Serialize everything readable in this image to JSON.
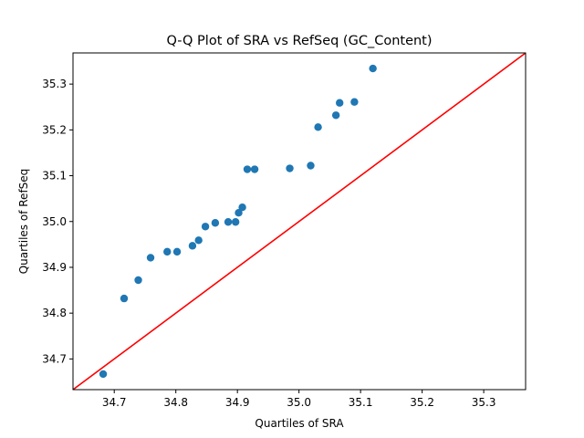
{
  "chart_data": {
    "type": "scatter",
    "title": "Q-Q Plot of SRA vs RefSeq (GC_Content)",
    "xlabel": "Quartiles of SRA",
    "ylabel": "Quartiles of RefSeq",
    "xlim": [
      34.633,
      35.368
    ],
    "ylim": [
      34.633,
      35.368
    ],
    "xticks": [
      "34.7",
      "34.8",
      "34.9",
      "35.0",
      "35.1",
      "35.2",
      "35.3"
    ],
    "yticks": [
      "34.7",
      "34.8",
      "34.9",
      "35.0",
      "35.1",
      "35.2",
      "35.3"
    ],
    "grid": false,
    "reference_line": {
      "from": [
        34.633,
        34.633
      ],
      "to": [
        35.368,
        35.368
      ],
      "color": "#ff0000"
    },
    "marker_color": "#1f77b4",
    "points": [
      {
        "x": 34.682,
        "y": 34.667
      },
      {
        "x": 34.716,
        "y": 34.832
      },
      {
        "x": 34.739,
        "y": 34.872
      },
      {
        "x": 34.759,
        "y": 34.921
      },
      {
        "x": 34.786,
        "y": 34.934
      },
      {
        "x": 34.802,
        "y": 34.934
      },
      {
        "x": 34.827,
        "y": 34.947
      },
      {
        "x": 34.837,
        "y": 34.959
      },
      {
        "x": 34.848,
        "y": 34.989
      },
      {
        "x": 34.864,
        "y": 34.997
      },
      {
        "x": 34.885,
        "y": 34.999
      },
      {
        "x": 34.897,
        "y": 34.999
      },
      {
        "x": 34.902,
        "y": 35.019
      },
      {
        "x": 34.908,
        "y": 35.031
      },
      {
        "x": 34.916,
        "y": 35.114
      },
      {
        "x": 34.928,
        "y": 35.114
      },
      {
        "x": 34.985,
        "y": 35.116
      },
      {
        "x": 35.019,
        "y": 35.122
      },
      {
        "x": 35.031,
        "y": 35.206
      },
      {
        "x": 35.06,
        "y": 35.232
      },
      {
        "x": 35.066,
        "y": 35.259
      },
      {
        "x": 35.09,
        "y": 35.261
      },
      {
        "x": 35.12,
        "y": 35.334
      }
    ]
  }
}
